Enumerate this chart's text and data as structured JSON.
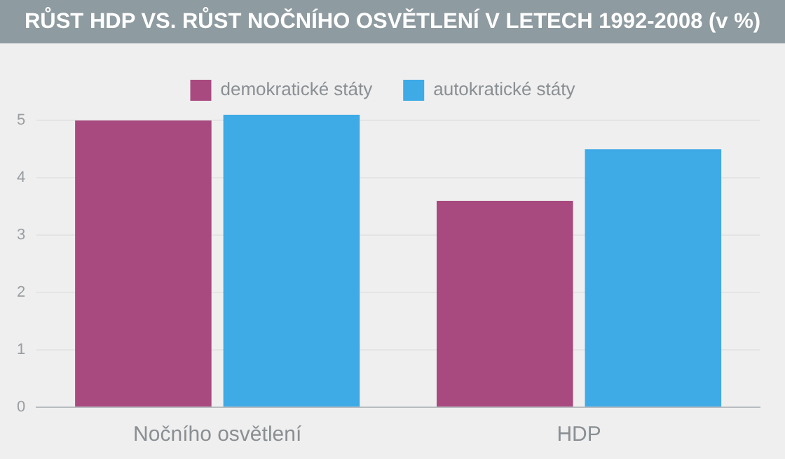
{
  "chart_data": {
    "type": "bar",
    "title": "RŮST HDP VS. RŮST NOČNÍHO OSVĚTLENÍ V LETECH 1992-2008 (v %)",
    "categories": [
      "Nočního osvětlení",
      "HDP"
    ],
    "series": [
      {
        "name": "demokratické státy",
        "color": "#a84a80",
        "values": [
          5.0,
          3.6
        ]
      },
      {
        "name": "autokratické státy",
        "color": "#3eaae6",
        "values": [
          5.1,
          4.5
        ]
      }
    ],
    "ylim": [
      0,
      5.1
    ],
    "yticks": [
      0,
      1,
      2,
      3,
      4,
      5
    ],
    "grid": "y",
    "legend": "top"
  }
}
